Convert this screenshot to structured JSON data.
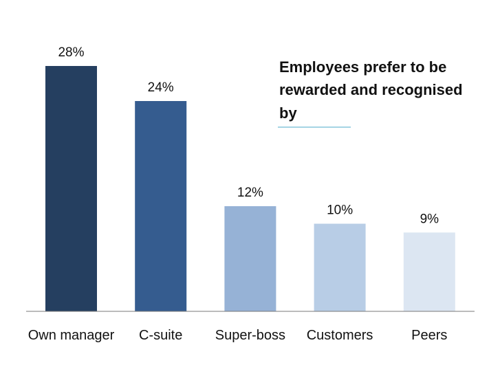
{
  "chart_data": {
    "type": "bar",
    "title": "Employees prefer to be rewarded and recognised by",
    "title_lines": [
      "Employees prefer to be",
      "rewarded and recognised",
      "by"
    ],
    "categories": [
      "Own manager",
      "C-suite",
      "Super-boss",
      "Customers",
      "Peers"
    ],
    "values": [
      28,
      24,
      12,
      10,
      9
    ],
    "value_labels": [
      "28%",
      "24%",
      "12%",
      "10%",
      "9%"
    ],
    "bar_colors": [
      "#253f60",
      "#355c8f",
      "#96b2d6",
      "#b8cde6",
      "#dce6f2"
    ],
    "title_underline_color": "#4aa9c8",
    "axis_color": "#777777",
    "xlabel": "",
    "ylabel": "",
    "ylim": [
      0,
      28
    ],
    "grid": false,
    "legend": "none"
  }
}
